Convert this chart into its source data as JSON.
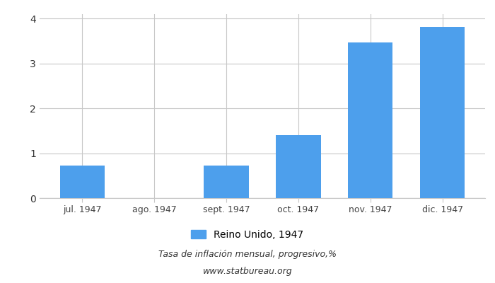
{
  "categories": [
    "jul. 1947",
    "ago. 1947",
    "sept. 1947",
    "oct. 1947",
    "nov. 1947",
    "dic. 1947"
  ],
  "values": [
    0.72,
    0.0,
    0.72,
    1.4,
    3.47,
    3.82
  ],
  "bar_color": "#4d9fec",
  "title1": "Tasa de inflación mensual, progresivo,%",
  "title2": "www.statbureau.org",
  "legend_label": "Reino Unido, 1947",
  "ylim": [
    0,
    4.1
  ],
  "yticks": [
    0,
    1,
    2,
    3,
    4
  ],
  "background_color": "#ffffff",
  "grid_color": "#c8c8c8"
}
